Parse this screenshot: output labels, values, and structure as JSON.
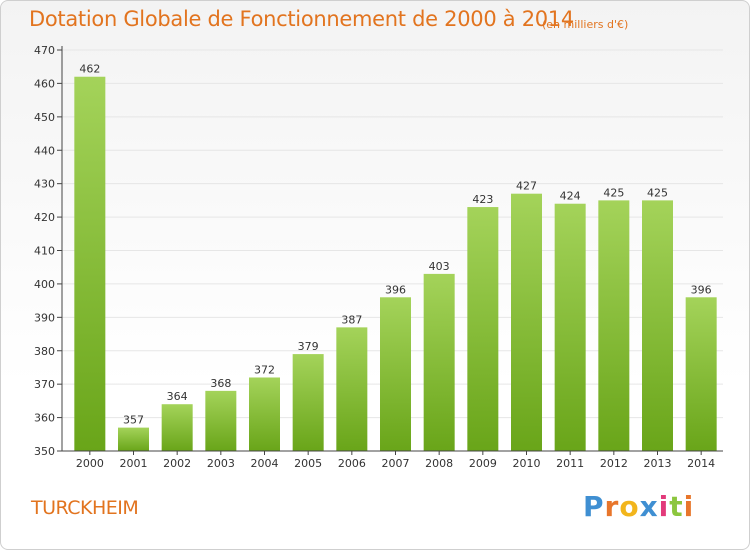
{
  "title": "Dotation Globale de Fonctionnement de 2000 à 2014",
  "subtitle": "(en milliers d'€)",
  "place": "TURCKHEIM",
  "logo": {
    "letters": [
      "P",
      "r",
      "o",
      "x",
      "i",
      "t",
      "i"
    ],
    "colors": [
      "#3f8fd2",
      "#e8762b",
      "#f2b51c",
      "#3f8fd2",
      "#e23a7a",
      "#8cc63e",
      "#e8762b"
    ]
  },
  "colors": {
    "title": "#e2741f",
    "bar_top": "#a4d35a",
    "bar_bottom": "#69a519",
    "axis": "#444444",
    "grid": "#e6e6e6"
  },
  "chart_data": {
    "type": "bar",
    "categories": [
      "2000",
      "2001",
      "2002",
      "2003",
      "2004",
      "2005",
      "2006",
      "2007",
      "2008",
      "2009",
      "2010",
      "2011",
      "2012",
      "2013",
      "2014"
    ],
    "values": [
      462,
      357,
      364,
      368,
      372,
      379,
      387,
      396,
      403,
      423,
      427,
      424,
      425,
      425,
      396
    ],
    "ylim": [
      350,
      470
    ],
    "yticks": [
      350,
      360,
      370,
      380,
      390,
      400,
      410,
      420,
      430,
      440,
      450,
      460,
      470
    ],
    "grid": true,
    "data_labels": true
  }
}
